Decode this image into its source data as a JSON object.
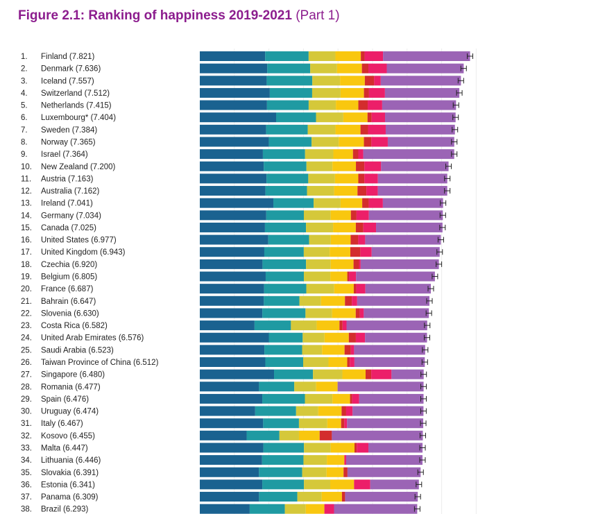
{
  "chart_data": {
    "type": "bar",
    "orientation": "horizontal",
    "stacked": true,
    "title": "Figure 2.1: Ranking of happiness 2019-2021",
    "subtitle": "(Part 1)",
    "xmax": 8.0,
    "series_colors": [
      "#1a6290",
      "#1f9aa2",
      "#d5c83a",
      "#f9c70f",
      "#d32d2d",
      "#ec1f69",
      "#9b64b5"
    ],
    "countries": [
      {
        "rank": "1.",
        "name": "Finland (7.821)",
        "score": 7.821,
        "parts": [
          1.892,
          1.258,
          0.775,
          0.736,
          0.109,
          0.534,
          2.518
        ]
      },
      {
        "rank": "2.",
        "name": "Denmark (7.636)",
        "score": 7.636,
        "parts": [
          1.953,
          1.243,
          0.777,
          0.719,
          0.188,
          0.532,
          2.226
        ]
      },
      {
        "rank": "3.",
        "name": "Iceland (7.557)",
        "score": 7.557,
        "parts": [
          1.936,
          1.32,
          0.803,
          0.718,
          0.27,
          0.191,
          2.32
        ]
      },
      {
        "rank": "4.",
        "name": "Switzerland (7.512)",
        "score": 7.512,
        "parts": [
          2.026,
          1.226,
          0.822,
          0.677,
          0.147,
          0.461,
          2.153
        ]
      },
      {
        "rank": "5.",
        "name": "Netherlands (7.415)",
        "score": 7.415,
        "parts": [
          1.945,
          1.206,
          0.787,
          0.651,
          0.271,
          0.419,
          2.137
        ]
      },
      {
        "rank": "6.",
        "name": "Luxembourg* (7.404)",
        "score": 7.404,
        "parts": [
          2.209,
          1.155,
          0.79,
          0.7,
          0.12,
          0.388,
          2.042
        ]
      },
      {
        "rank": "7.",
        "name": "Sweden (7.384)",
        "score": 7.384,
        "parts": [
          1.92,
          1.204,
          0.803,
          0.724,
          0.218,
          0.512,
          2.003
        ]
      },
      {
        "rank": "8.",
        "name": "Norway (7.365)",
        "score": 7.365,
        "parts": [
          1.997,
          1.239,
          0.786,
          0.728,
          0.217,
          0.474,
          1.924
        ]
      },
      {
        "rank": "9.",
        "name": "Israel (7.364)",
        "score": 7.364,
        "parts": [
          1.826,
          1.221,
          0.818,
          0.568,
          0.155,
          0.143,
          2.633
        ]
      },
      {
        "rank": "10.",
        "name": "New Zealand (7.200)",
        "score": 7.2,
        "parts": [
          1.852,
          1.235,
          0.752,
          0.68,
          0.245,
          0.483,
          1.953
        ]
      },
      {
        "rank": "11.",
        "name": "Austria (7.163)",
        "score": 7.163,
        "parts": [
          1.931,
          1.209,
          0.773,
          0.675,
          0.177,
          0.39,
          2.008
        ]
      },
      {
        "rank": "12.",
        "name": "Australia (7.162)",
        "score": 7.162,
        "parts": [
          1.9,
          1.203,
          0.785,
          0.676,
          0.258,
          0.331,
          2.009
        ]
      },
      {
        "rank": "13.",
        "name": "Ireland (7.041)",
        "score": 7.041,
        "parts": [
          2.129,
          1.166,
          0.779,
          0.627,
          0.19,
          0.408,
          1.742
        ]
      },
      {
        "rank": "14.",
        "name": "Germany (7.034)",
        "score": 7.034,
        "parts": [
          1.924,
          1.088,
          0.776,
          0.585,
          0.163,
          0.358,
          2.14
        ]
      },
      {
        "rank": "15.",
        "name": "Canada (7.025)",
        "score": 7.025,
        "parts": [
          1.886,
          1.188,
          0.783,
          0.659,
          0.217,
          0.368,
          1.924
        ]
      },
      {
        "rank": "16.",
        "name": "United States (6.977)",
        "score": 6.977,
        "parts": [
          1.982,
          1.182,
          0.628,
          0.574,
          0.22,
          0.201,
          2.19
        ]
      },
      {
        "rank": "17.",
        "name": "United Kingdom (6.943)",
        "score": 6.943,
        "parts": [
          1.867,
          1.143,
          0.75,
          0.597,
          0.289,
          0.329,
          1.968
        ]
      },
      {
        "rank": "18.",
        "name": "Czechia (6.920)",
        "score": 6.92,
        "parts": [
          1.815,
          1.26,
          0.715,
          0.66,
          0.158,
          0.048,
          2.264
        ]
      },
      {
        "rank": "19.",
        "name": "Belgium (6.805)",
        "score": 6.805,
        "parts": [
          1.907,
          1.106,
          0.764,
          0.492,
          0.049,
          0.204,
          2.283
        ]
      },
      {
        "rank": "20.",
        "name": "France (6.687)",
        "score": 6.687,
        "parts": [
          1.863,
          1.219,
          0.808,
          0.567,
          0.07,
          0.266,
          1.894
        ]
      },
      {
        "rank": "21.",
        "name": "Bahrain (6.647)",
        "score": 6.647,
        "parts": [
          1.854,
          1.029,
          0.625,
          0.693,
          0.199,
          0.155,
          2.092
        ]
      },
      {
        "rank": "22.",
        "name": "Slovenia (6.630)",
        "score": 6.63,
        "parts": [
          1.81,
          1.249,
          0.769,
          0.685,
          0.118,
          0.115,
          1.884
        ]
      },
      {
        "rank": "23.",
        "name": "Costa Rica (6.582)",
        "score": 6.582,
        "parts": [
          1.584,
          1.054,
          0.744,
          0.661,
          0.089,
          0.115,
          2.335
        ]
      },
      {
        "rank": "24.",
        "name": "United Arab Emirates (6.576)",
        "score": 6.576,
        "parts": [
          1.998,
          0.98,
          0.633,
          0.702,
          0.204,
          0.266,
          1.793
        ]
      },
      {
        "rank": "25.",
        "name": "Saudi Arabia (6.523)",
        "score": 6.523,
        "parts": [
          1.87,
          1.092,
          0.577,
          0.651,
          0.18,
          0.096,
          2.057
        ]
      },
      {
        "rank": "26.",
        "name": "Taiwan Province of China (6.512)",
        "score": 6.512,
        "parts": [
          1.897,
          1.095,
          0.733,
          0.542,
          0.075,
          0.134,
          2.036
        ]
      },
      {
        "rank": "27.",
        "name": "Singapore (6.480)",
        "score": 6.48,
        "parts": [
          2.149,
          1.127,
          0.851,
          0.672,
          0.163,
          0.587,
          0.931
        ]
      },
      {
        "rank": "28.",
        "name": "Romania (6.477)",
        "score": 6.477,
        "parts": [
          1.715,
          1.019,
          0.633,
          0.622,
          0.0,
          0.0,
          2.488
        ]
      },
      {
        "rank": "29.",
        "name": "Spain (6.476)",
        "score": 6.476,
        "parts": [
          1.808,
          1.234,
          0.796,
          0.511,
          0.062,
          0.199,
          1.866
        ]
      },
      {
        "rank": "30.",
        "name": "Uruguay (6.474)",
        "score": 6.474,
        "parts": [
          1.603,
          1.184,
          0.643,
          0.674,
          0.132,
          0.186,
          2.052
        ]
      },
      {
        "rank": "31.",
        "name": "Italy (6.467)",
        "score": 6.467,
        "parts": [
          1.834,
          1.036,
          0.82,
          0.401,
          0.092,
          0.079,
          2.205
        ]
      },
      {
        "rank": "32.",
        "name": "Kosovo (6.455)",
        "score": 6.455,
        "parts": [
          1.356,
          0.948,
          0.567,
          0.598,
          0.354,
          0.0,
          2.632
        ]
      },
      {
        "rank": "33.",
        "name": "Malta (6.447)",
        "score": 6.447,
        "parts": [
          1.839,
          1.176,
          0.773,
          0.69,
          0.066,
          0.336,
          1.567
        ]
      },
      {
        "rank": "34.",
        "name": "Lithuania (6.446)",
        "score": 6.446,
        "parts": [
          1.803,
          1.198,
          0.676,
          0.507,
          0.0,
          0.052,
          2.21
        ]
      },
      {
        "rank": "35.",
        "name": "Slovakia (6.391)",
        "score": 6.391,
        "parts": [
          1.713,
          1.251,
          0.705,
          0.492,
          0.114,
          0.0,
          2.116
        ]
      },
      {
        "rank": "36.",
        "name": "Estonia (6.341)",
        "score": 6.341,
        "parts": [
          1.809,
          1.206,
          0.76,
          0.69,
          0.0,
          0.469,
          1.407
        ]
      },
      {
        "rank": "37.",
        "name": "Panama (6.309)",
        "score": 6.309,
        "parts": [
          1.714,
          1.109,
          0.704,
          0.587,
          0.091,
          0.0,
          2.104
        ]
      },
      {
        "rank": "38.",
        "name": "Brazil (6.293)",
        "score": 6.293,
        "parts": [
          1.444,
          1.018,
          0.606,
          0.538,
          0.0,
          0.28,
          2.407
        ]
      }
    ]
  }
}
